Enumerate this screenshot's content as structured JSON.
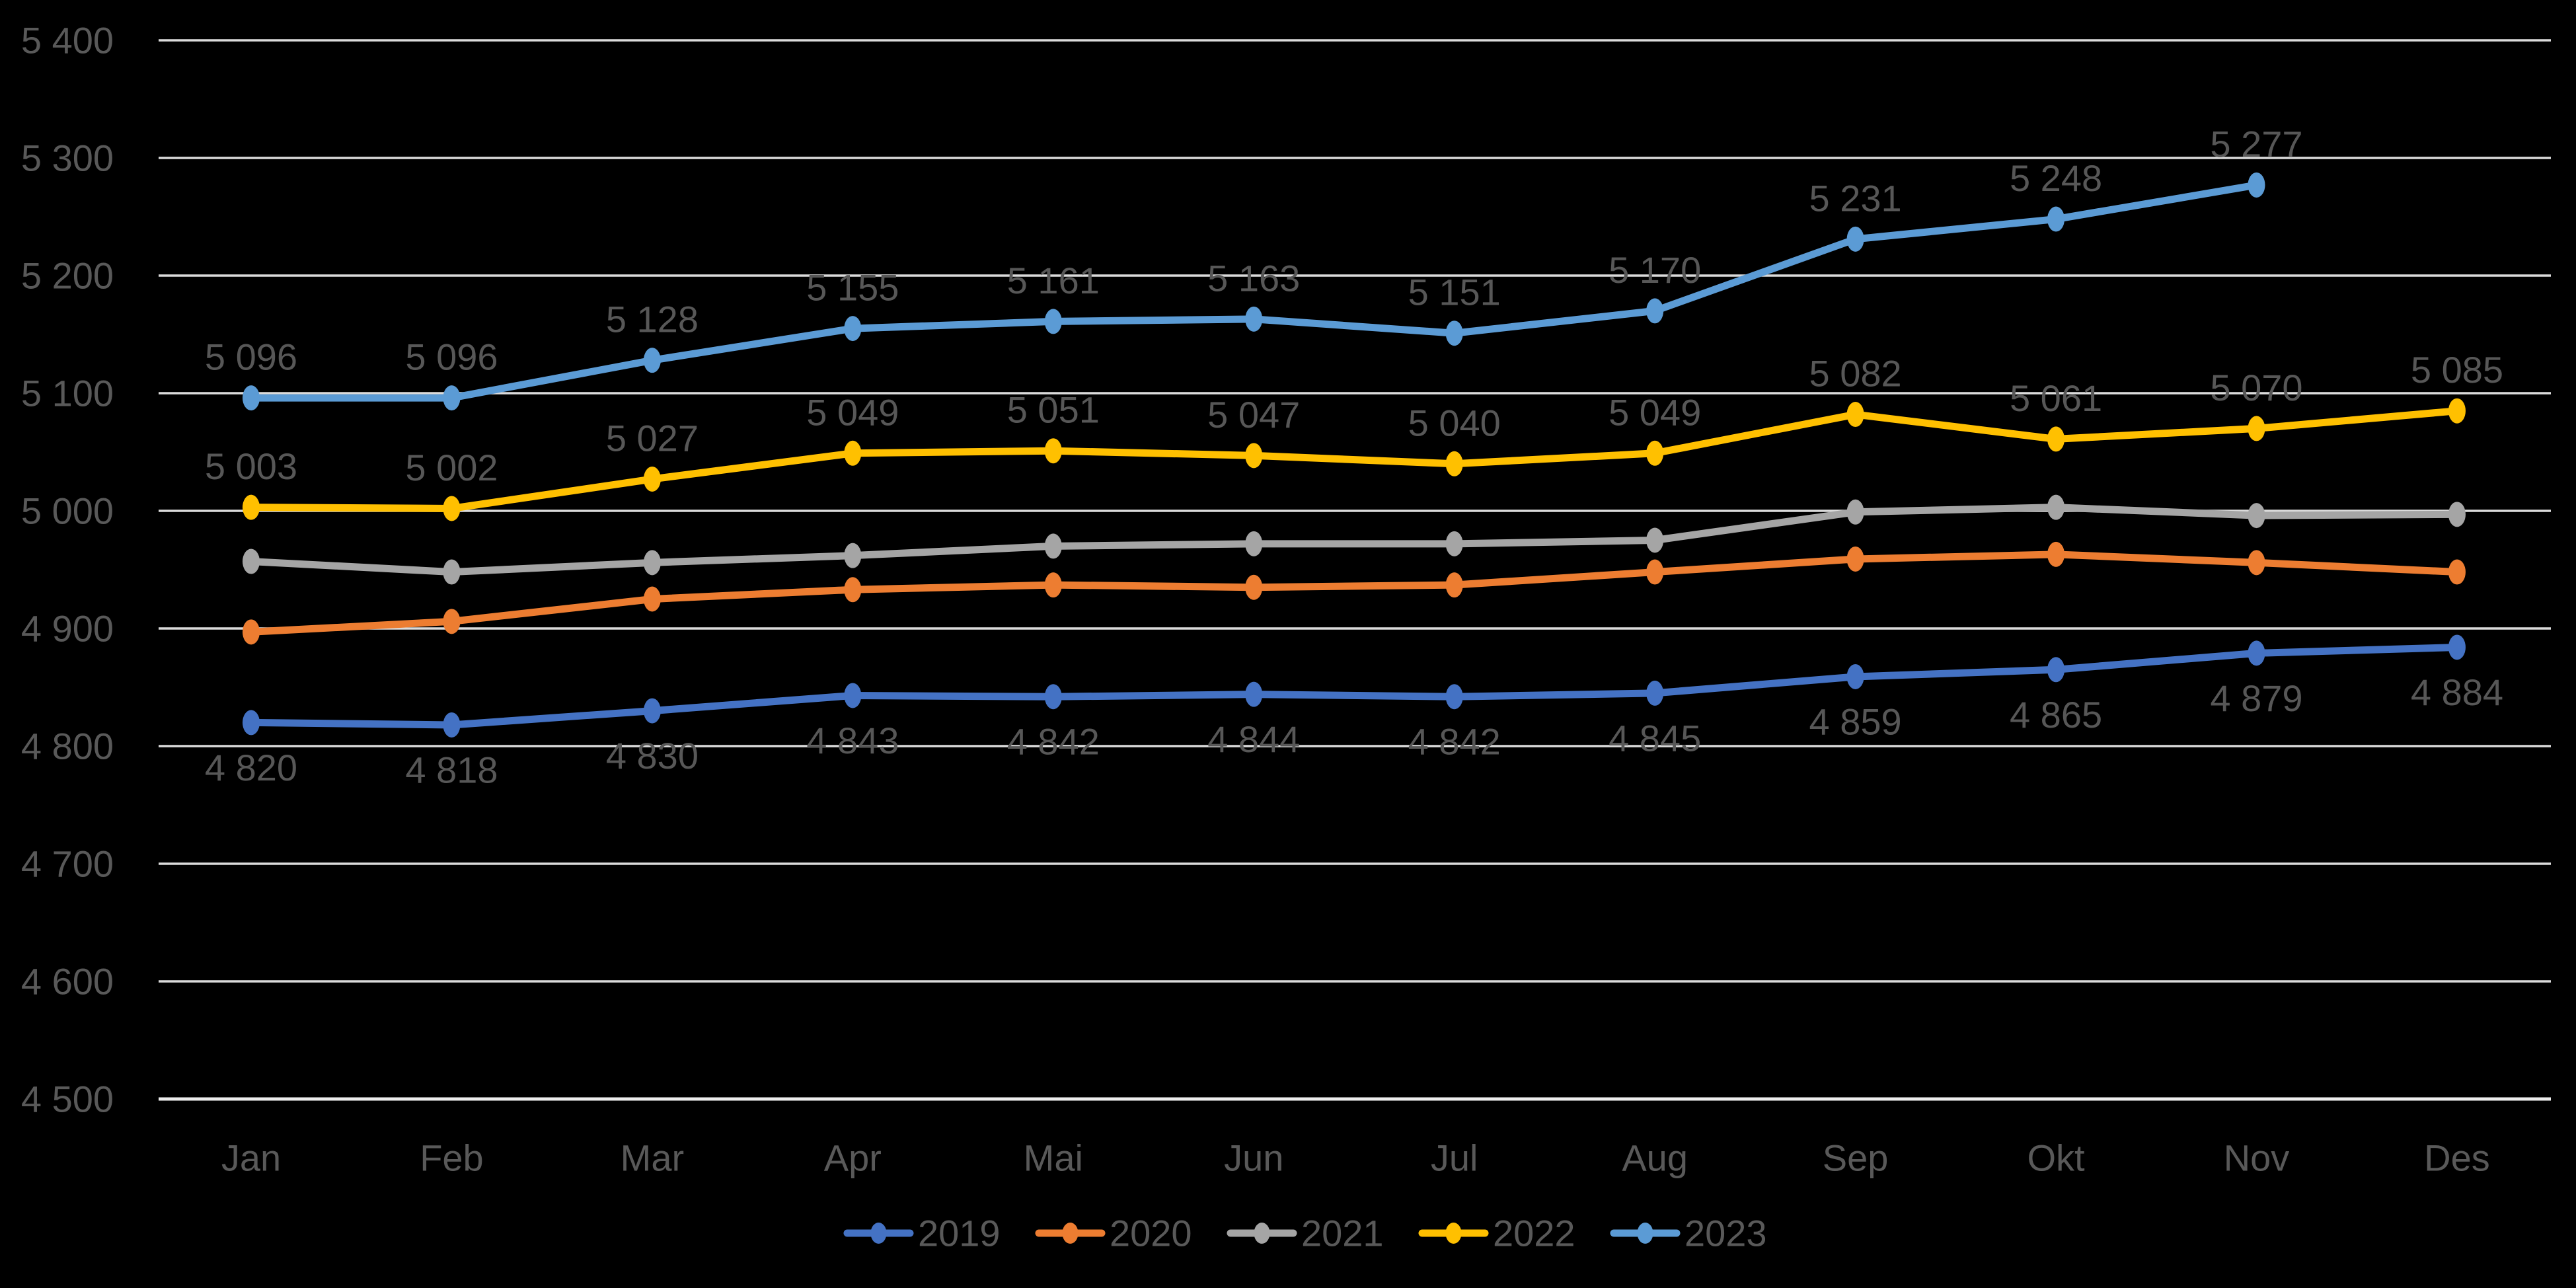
{
  "page": {
    "background": "#000000"
  },
  "chart_data": {
    "type": "line",
    "title": "",
    "categories": [
      "Jan",
      "Feb",
      "Mar",
      "Apr",
      "Mai",
      "Jun",
      "Jul",
      "Aug",
      "Sep",
      "Okt",
      "Nov",
      "Des"
    ],
    "y_axis": {
      "min": 4500,
      "max": 5400,
      "step": 100,
      "tick_labels": [
        "5 400",
        "5 300",
        "5 200",
        "5 100",
        "5 000",
        "4 900",
        "4 800",
        "4 700",
        "4 600",
        "4 500"
      ]
    },
    "grid": true,
    "legend_position": "bottom",
    "colors": {
      "text": "#595959",
      "data_label_text": "#575757",
      "gridline": "#DBDBDB",
      "axis_line": "#ECECEC",
      "background": "#000000"
    },
    "series": [
      {
        "name": "2019",
        "color": "#4472C4",
        "label_position": "below",
        "values": [
          4820,
          4818,
          4830,
          4843,
          4842,
          4844,
          4842,
          4845,
          4859,
          4865,
          4879,
          4884
        ],
        "data_labels": [
          "4 820",
          "4 818",
          "4 830",
          "4 843",
          "4 842",
          "4 844",
          "4 842",
          "4 845",
          "4 859",
          "4 865",
          "4 879",
          "4 884"
        ]
      },
      {
        "name": "2020",
        "color": "#ED7D31",
        "label_position": "none",
        "values": [
          4897,
          4906,
          4925,
          4933,
          4937,
          4935,
          4937,
          4948,
          4959,
          4963,
          4956,
          4948
        ],
        "data_labels": []
      },
      {
        "name": "2021",
        "color": "#A5A5A5",
        "label_position": "none",
        "values": [
          4957,
          4948,
          4956,
          4962,
          4970,
          4972,
          4972,
          4975,
          4999,
          5003,
          4996,
          4997
        ],
        "data_labels": []
      },
      {
        "name": "2022",
        "color": "#FFC000",
        "label_position": "above",
        "values": [
          5003,
          5002,
          5027,
          5049,
          5051,
          5047,
          5040,
          5049,
          5082,
          5061,
          5070,
          5085
        ],
        "data_labels": [
          "5 003",
          "5 002",
          "5 027",
          "5 049",
          "5 051",
          "5 047",
          "5 040",
          "5 049",
          "5 082",
          "5 061",
          "5 070",
          "5 085"
        ]
      },
      {
        "name": "2023",
        "color": "#5B9BD5",
        "label_position": "above",
        "values": [
          5096,
          5096,
          5128,
          5155,
          5161,
          5163,
          5151,
          5170,
          5231,
          5248,
          5277
        ],
        "data_labels": [
          "5 096",
          "5 096",
          "5 128",
          "5 155",
          "5 161",
          "5 163",
          "5 151",
          "5 170",
          "5 231",
          "5 248",
          "5 277"
        ]
      }
    ],
    "legend": [
      "2019",
      "2020",
      "2021",
      "2022",
      "2023"
    ]
  }
}
